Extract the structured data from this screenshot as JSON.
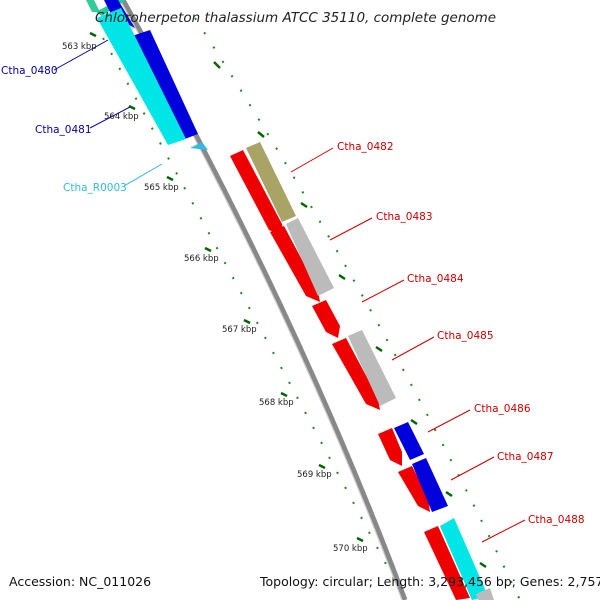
{
  "map": {
    "title": "Chloroherpeton thalassium ATCC 35110, complete genome",
    "accession": "Accession: NC_011026",
    "summary": "Topology: circular; Length: 3,293,456 bp; Genes: 2,757"
  },
  "ticks": [
    {
      "label": "563 kbp"
    },
    {
      "label": "564 kbp"
    },
    {
      "label": "565 kbp"
    },
    {
      "label": "566 kbp"
    },
    {
      "label": "567 kbp"
    },
    {
      "label": "568 kbp"
    },
    {
      "label": "569 kbp"
    },
    {
      "label": "570 kbp"
    }
  ],
  "genes": [
    {
      "name": "Ctha_0480",
      "color": "#0000aa"
    },
    {
      "name": "Ctha_0481",
      "color": "#0000aa"
    },
    {
      "name": "Ctha_R0003",
      "color": "#33bbdd"
    },
    {
      "name": "Ctha_0482",
      "color": "#cc0000"
    },
    {
      "name": "Ctha_0483",
      "color": "#cc0000"
    },
    {
      "name": "Ctha_0484",
      "color": "#cc0000"
    },
    {
      "name": "Ctha_0485",
      "color": "#cc0000"
    },
    {
      "name": "Ctha_0486",
      "color": "#cc0000"
    },
    {
      "name": "Ctha_0487",
      "color": "#cc0000"
    },
    {
      "name": "Ctha_0488",
      "color": "#cc0000"
    }
  ],
  "colors": {
    "forward_cds": "#ee0000",
    "reverse_cds": "#0000dd",
    "rna": "#00e5e5",
    "other": "#bbbbbb",
    "olive": "#aaa366",
    "backbone": "#888888",
    "tick_mark": "#006600"
  }
}
